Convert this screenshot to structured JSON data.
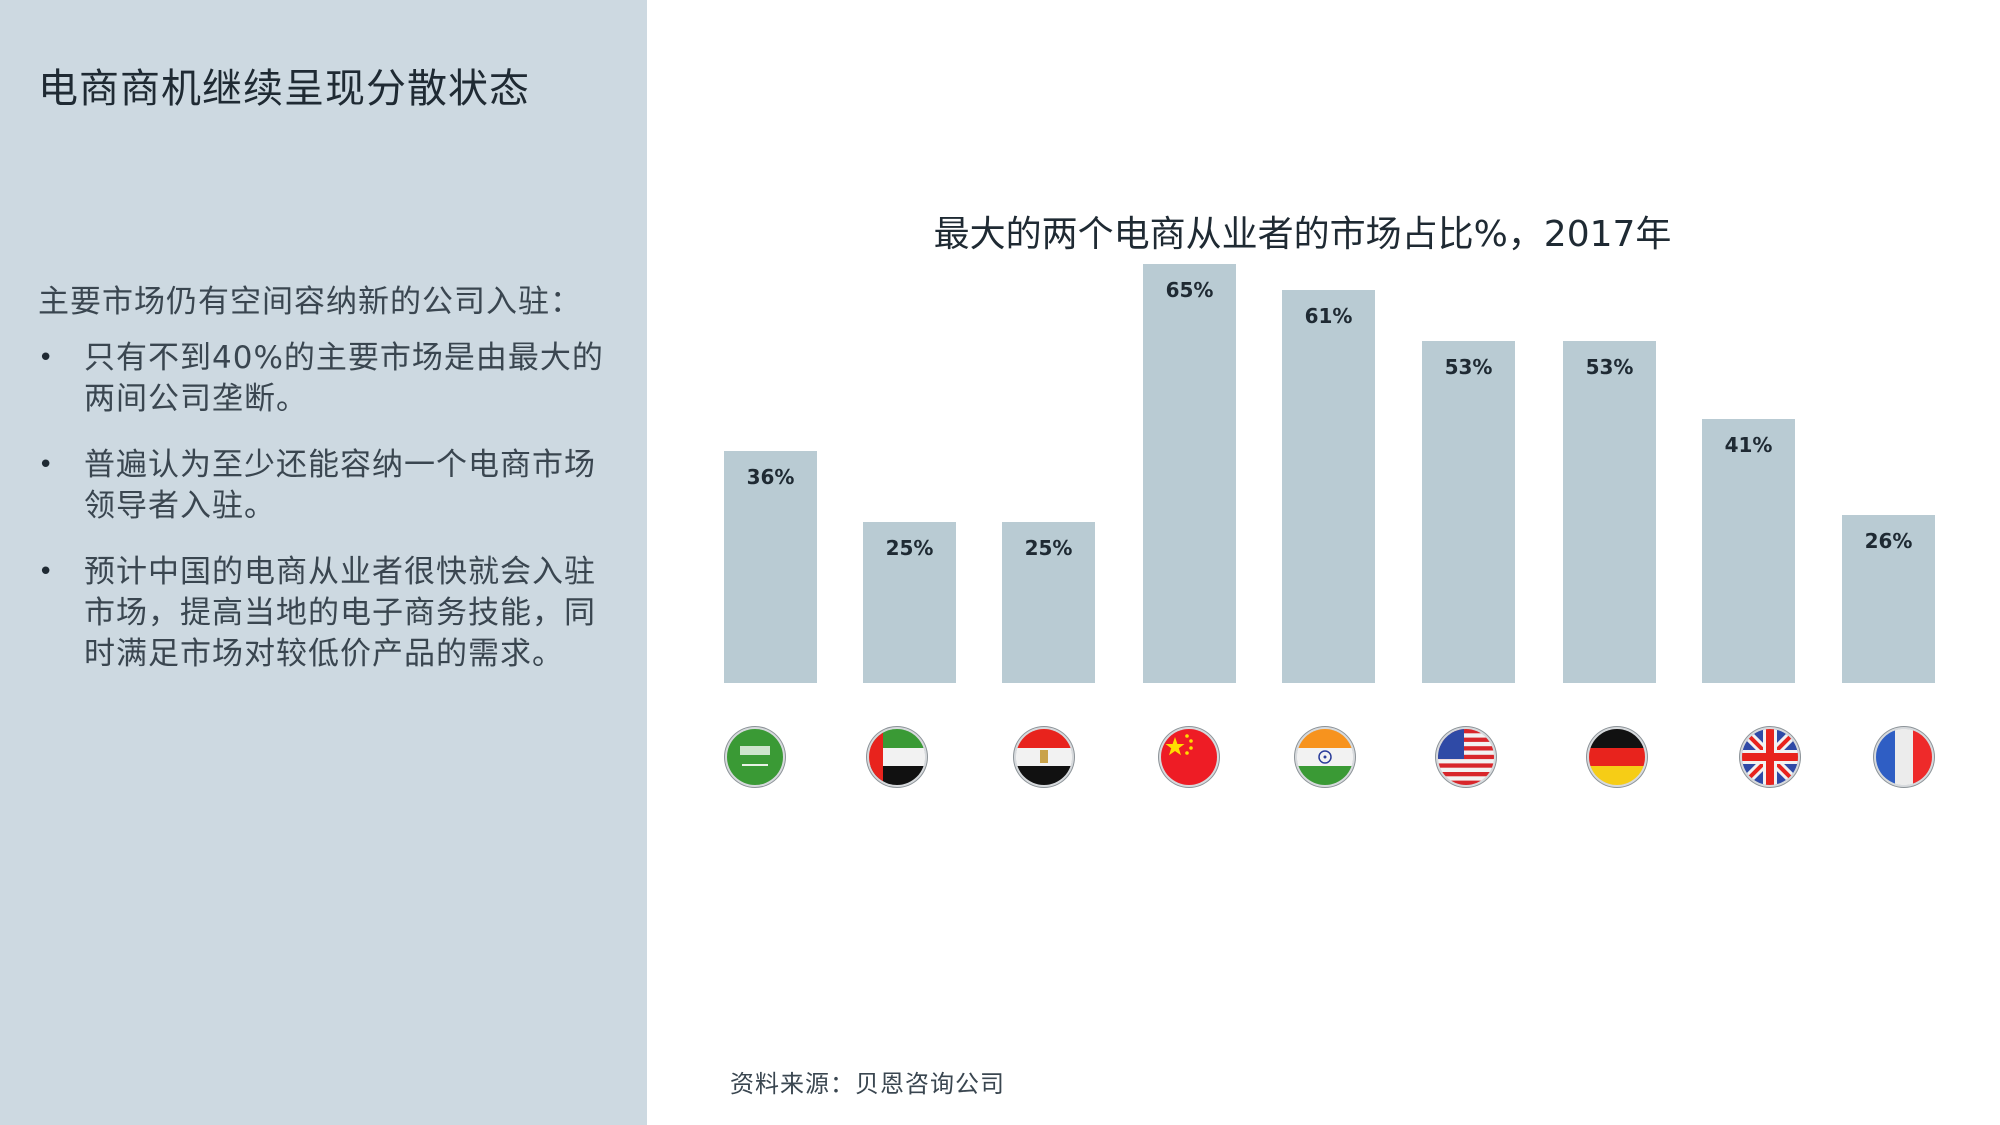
{
  "left_panel": {
    "title": "电商商机继续呈现分散状态",
    "intro": "主要市场仍有空间容纳新的公司入驻：",
    "bullets": [
      {
        "line1": "只有不到40%的主要市场是由最大的",
        "line2": "两间公司垄断。"
      },
      {
        "line1": "普遍认为至少还能容纳一个电商市场",
        "line2": "领导者入驻。"
      },
      {
        "line1": "预计中国的电商从业者很快就会入驻",
        "line2": "市场，提高当地的电子商务技能，同",
        "line3": "时满足市场对较低价产品的需求。"
      }
    ],
    "bullet_glyph": "•",
    "background_color": "#cdd9e1"
  },
  "chart_data": {
    "type": "bar",
    "title": "最大的两个电商从业者的市场占比%，2017年",
    "categories": [
      "Saudi Arabia",
      "UAE",
      "Egypt",
      "China",
      "India",
      "USA",
      "Germany",
      "UK",
      "France"
    ],
    "category_icons": [
      "flag-saudi-arabia-icon",
      "flag-uae-icon",
      "flag-egypt-icon",
      "flag-china-icon",
      "flag-india-icon",
      "flag-usa-icon",
      "flag-germany-icon",
      "flag-uk-icon",
      "flag-france-icon"
    ],
    "values": [
      36,
      25,
      25,
      65,
      61,
      53,
      53,
      41,
      26
    ],
    "labels": [
      "36%",
      "25%",
      "25%",
      "65%",
      "61%",
      "53%",
      "53%",
      "41%",
      "26%"
    ],
    "xlabel": "",
    "ylabel": "",
    "ylim": [
      0,
      65
    ],
    "grid": false,
    "legend": null,
    "bar_color": "#b9cbd3"
  },
  "footer": {
    "source": "资料来源：贝恩咨询公司"
  }
}
